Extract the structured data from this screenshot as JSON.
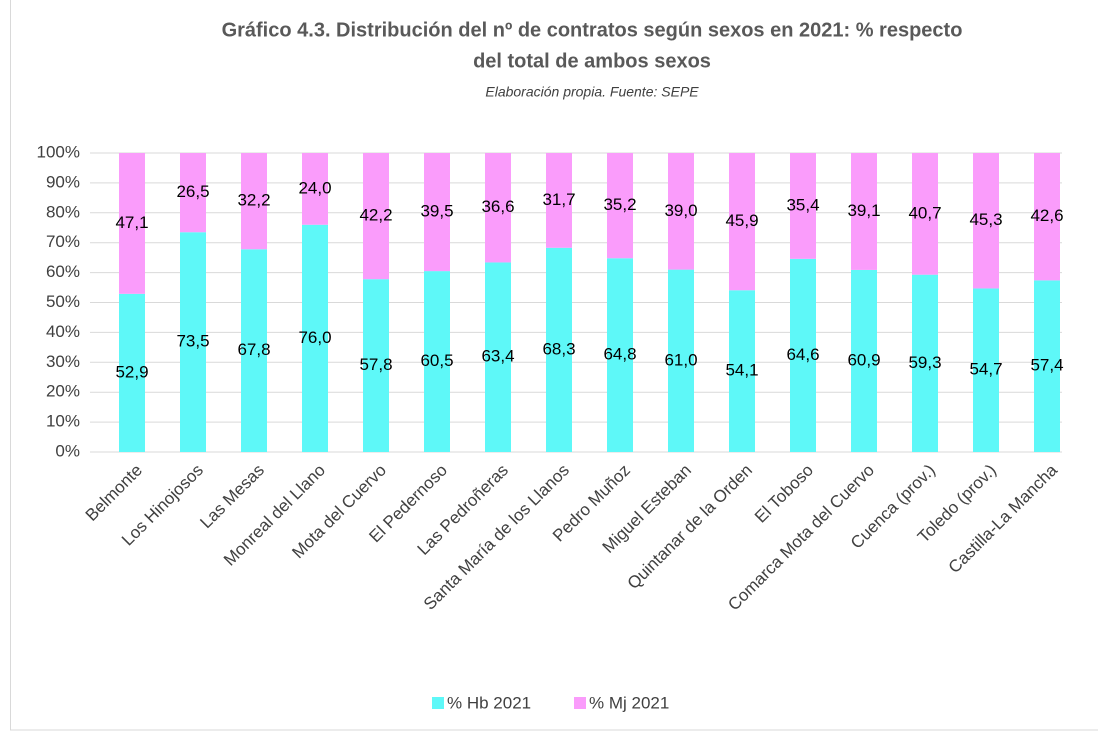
{
  "chart_data": {
    "type": "stacked_bar",
    "title": [
      "Gráfico 4.3. Distribución del nº de contratos según sexos en 2021: % respecto",
      "del total de ambos sexos"
    ],
    "subtitle": "Elaboración propia. Fuente: SEPE",
    "categories": [
      "Belmonte",
      "Los Hinojosos",
      "Las Mesas",
      "Monreal del Llano",
      "Mota del Cuervo",
      "El Pedernoso",
      "Las Pedroñeras",
      "Santa María de los Llanos",
      "Pedro Muñoz",
      "Miguel Esteban",
      "Quintanar de la Orden",
      "El Toboso",
      "Comarca Mota del Cuervo",
      "Cuenca (prov.)",
      "Toledo (prov.)",
      "Castilla-La Mancha"
    ],
    "series": [
      {
        "name": "% Hb 2021",
        "color": "#5ef8f8",
        "values": [
          52.9,
          73.5,
          67.8,
          76.0,
          57.8,
          60.5,
          63.4,
          68.3,
          64.8,
          61.0,
          54.1,
          64.6,
          60.9,
          59.3,
          54.7,
          57.4
        ],
        "value_labels": [
          "52,9",
          "73,5",
          "67,8",
          "76,0",
          "57,8",
          "60,5",
          "63,4",
          "68,3",
          "64,8",
          "61,0",
          "54,1",
          "64,6",
          "60,9",
          "59,3",
          "54,7",
          "57,4"
        ]
      },
      {
        "name": "% Mj 2021",
        "color": "#fa9cfb",
        "values": [
          47.1,
          26.5,
          32.2,
          24.0,
          42.2,
          39.5,
          36.6,
          31.7,
          35.2,
          39.0,
          45.9,
          35.4,
          39.1,
          40.7,
          45.3,
          42.6
        ],
        "value_labels": [
          "47,1",
          "26,5",
          "32,2",
          "24,0",
          "42,2",
          "39,5",
          "36,6",
          "31,7",
          "35,2",
          "39,0",
          "45,9",
          "35,4",
          "39,1",
          "40,7",
          "45,3",
          "42,6"
        ]
      }
    ],
    "ylim": [
      0,
      100
    ],
    "yticks": [
      {
        "value": 0,
        "label": "0%"
      },
      {
        "value": 10,
        "label": "10%"
      },
      {
        "value": 20,
        "label": "20%"
      },
      {
        "value": 30,
        "label": "30%"
      },
      {
        "value": 40,
        "label": "40%"
      },
      {
        "value": 50,
        "label": "50%"
      },
      {
        "value": 60,
        "label": "60%"
      },
      {
        "value": 70,
        "label": "70%"
      },
      {
        "value": 80,
        "label": "80%"
      },
      {
        "value": 90,
        "label": "90%"
      },
      {
        "value": 100,
        "label": "100%"
      }
    ],
    "grid": true,
    "legend": "bottom"
  }
}
